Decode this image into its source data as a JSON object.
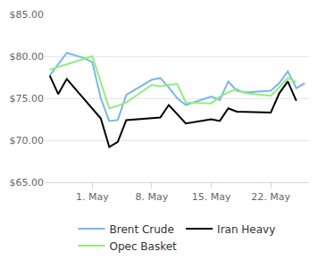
{
  "chart_data": {
    "type": "line",
    "series": [
      {
        "name": "Brent Crude",
        "color": "#7cb5ec",
        "x": [
          -4,
          -2,
          0,
          1,
          2,
          3,
          4,
          5,
          8,
          9,
          10,
          11,
          12,
          15,
          16,
          17,
          18,
          19,
          22,
          23,
          24,
          25,
          26
        ],
        "values": [
          77.7,
          80.4,
          79.8,
          79.3,
          75.0,
          72.3,
          72.4,
          75.4,
          77.2,
          77.4,
          76.3,
          75.0,
          74.2,
          75.2,
          74.8,
          77.0,
          75.9,
          75.7,
          75.9,
          76.8,
          78.2,
          76.2,
          76.8
        ]
      },
      {
        "name": "Iran Heavy",
        "color": "#000000",
        "x": [
          -4,
          -3,
          -2,
          2,
          3,
          4,
          5,
          9,
          10,
          12,
          15,
          16,
          17,
          18,
          22,
          23,
          24,
          25
        ],
        "values": [
          77.7,
          75.5,
          77.3,
          72.6,
          69.2,
          69.8,
          72.4,
          72.7,
          74.2,
          72.0,
          72.5,
          72.3,
          73.8,
          73.4,
          73.3,
          75.6,
          77.0,
          74.7
        ]
      },
      {
        "name": "Opec Basket",
        "color": "#90ed7d",
        "x": [
          -4,
          1,
          3,
          4,
          5,
          8,
          9,
          10,
          11,
          12,
          15,
          16,
          17,
          18,
          19,
          22,
          23,
          24,
          25
        ],
        "values": [
          78.4,
          80.0,
          73.8,
          74.1,
          74.5,
          76.6,
          76.4,
          76.6,
          76.7,
          74.5,
          74.4,
          75.2,
          75.7,
          76.1,
          75.6,
          75.3,
          76.3,
          77.4,
          76.9
        ]
      }
    ],
    "xlim": [
      -4.6,
      26.5
    ],
    "xticks": [
      {
        "value": 1,
        "label": "1. May"
      },
      {
        "value": 8,
        "label": "8. May"
      },
      {
        "value": 15,
        "label": "15. May"
      },
      {
        "value": 22,
        "label": "22. May"
      }
    ],
    "ylim": [
      65,
      85
    ],
    "yticks": [
      {
        "value": 65,
        "label": "$65.00"
      },
      {
        "value": 70,
        "label": "$70.00"
      },
      {
        "value": 75,
        "label": "$75.00"
      },
      {
        "value": 80,
        "label": "$80.00"
      },
      {
        "value": 85,
        "label": "$85.00"
      }
    ],
    "grid": true,
    "legend": "bottom"
  }
}
